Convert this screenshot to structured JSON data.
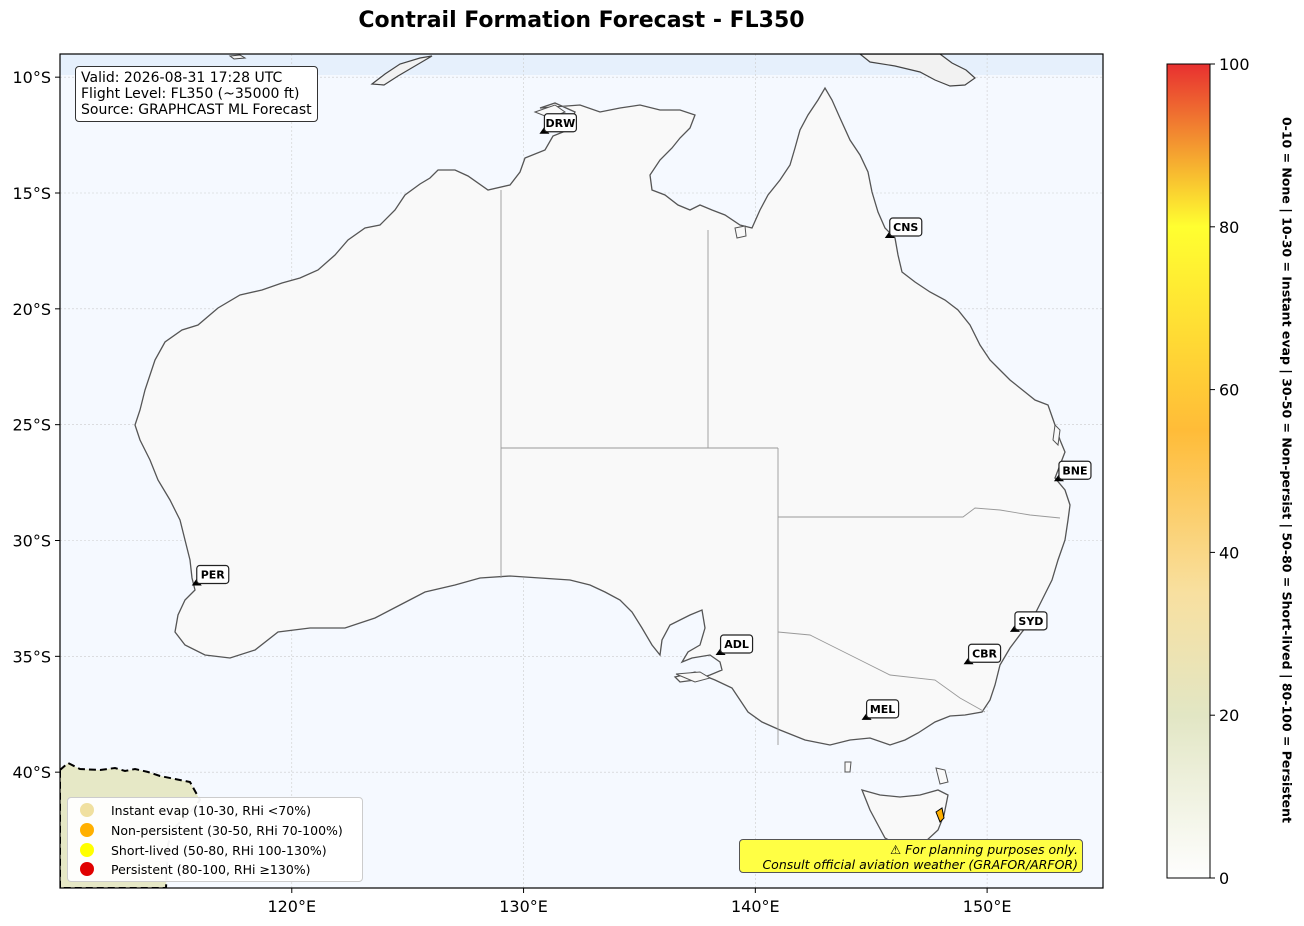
{
  "title": "Contrail Formation Forecast - FL350",
  "info": {
    "valid": "Valid: 2026-08-31 17:28 UTC",
    "flight_level": "Flight Level: FL350 (~35000 ft)",
    "source": "Source: GRAPHCAST ML Forecast"
  },
  "map": {
    "lon_range": [
      110,
      155
    ],
    "lat_range": [
      -45,
      -9
    ],
    "lon_ticks": [
      "120°E",
      "130°E",
      "140°E",
      "150°E"
    ],
    "lat_ticks": [
      "10°S",
      "15°S",
      "20°S",
      "25°S",
      "30°S",
      "35°S",
      "40°S"
    ],
    "grid": true,
    "ocean_color": "#f5f9ff",
    "land_color": "#f9f9f9"
  },
  "airports": [
    {
      "code": "DRW",
      "lon": 130.9,
      "lat": -12.4
    },
    {
      "code": "CNS",
      "lon": 145.8,
      "lat": -16.9
    },
    {
      "code": "BNE",
      "lon": 153.1,
      "lat": -27.4
    },
    {
      "code": "PER",
      "lon": 115.9,
      "lat": -31.9
    },
    {
      "code": "ADL",
      "lon": 138.5,
      "lat": -34.9
    },
    {
      "code": "SYD",
      "lon": 151.2,
      "lat": -33.9
    },
    {
      "code": "CBR",
      "lon": 149.2,
      "lat": -35.3
    },
    {
      "code": "MEL",
      "lon": 144.8,
      "lat": -37.7
    }
  ],
  "legend": [
    {
      "label": "Instant evap (10-30, RHi <70%)",
      "color": "#f0e0a0"
    },
    {
      "label": "Non-persistent (30-50, RHi 70-100%)",
      "color": "#ffb000"
    },
    {
      "label": "Short-lived (50-80, RHi 100-130%)",
      "color": "#ffff00"
    },
    {
      "label": "Persistent (80-100, RHi ≥130%)",
      "color": "#e00000"
    }
  ],
  "warning": {
    "line1": "⚠ For planning purposes only.",
    "line2": "Consult official aviation weather (GRAFOR/ARFOR)"
  },
  "colorbar": {
    "min": 0,
    "max": 100,
    "ticks": [
      "0",
      "20",
      "40",
      "60",
      "80",
      "100"
    ],
    "stops": [
      {
        "value": 0,
        "color": "#fefefe"
      },
      {
        "value": 20,
        "color": "#e2e6c4"
      },
      {
        "value": 35,
        "color": "#f8e0a0"
      },
      {
        "value": 55,
        "color": "#ffbc38"
      },
      {
        "value": 80,
        "color": "#ffff30"
      },
      {
        "value": 100,
        "color": "#e83030"
      }
    ],
    "side_label": "0-10 = None  |  10-30 = Instant evap  |  30-50 = Non-persist  |  50-80 = Short-lived  |  80-100 = Persistent"
  }
}
